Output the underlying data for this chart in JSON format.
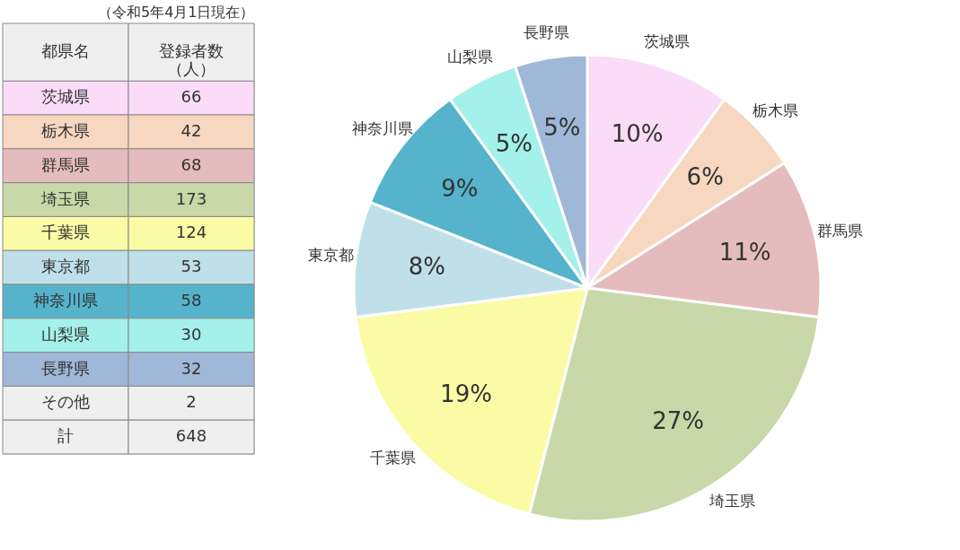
{
  "chart_data": [
    {
      "type": "other",
      "title": "（令和5年4月1日現在）",
      "xlabel": "都県名",
      "ylabel": "登録者数（人）",
      "categories": [
        "茨城県",
        "栃木県",
        "群馬県",
        "埼玉県",
        "千葉県",
        "東京都",
        "神奈川県",
        "山梨県",
        "長野県",
        "その他",
        "計"
      ],
      "values": [
        66,
        42,
        68,
        173,
        124,
        53,
        58,
        30,
        32,
        2,
        648
      ],
      "colors": [
        "#fadcf8",
        "#f7d7c0",
        "#e5bcbd",
        "#c8d8a8",
        "#fbfba6",
        "#bfe0e8",
        "#55b3cc",
        "#a4f0ea",
        "#a0b8d8",
        "#efefef",
        "#efefef"
      ],
      "data_labels": true
    },
    {
      "type": "pie",
      "categories": [
        "茨城県",
        "栃木県",
        "群馬県",
        "埼玉県",
        "千葉県",
        "東京都",
        "神奈川県",
        "山梨県",
        "長野県"
      ],
      "values": [
        10,
        6,
        11,
        27,
        19,
        8,
        9,
        5,
        5
      ],
      "colors": [
        "#fadcf8",
        "#f7d7c0",
        "#e5bcbd",
        "#c8d8a8",
        "#fbfba6",
        "#bfe0e8",
        "#55b3cc",
        "#a4f0ea",
        "#a0b8d8"
      ],
      "value_labels": [
        "10%",
        "6%",
        "11%",
        "27%",
        "19%",
        "8%",
        "9%",
        "5%",
        "5%"
      ]
    }
  ]
}
